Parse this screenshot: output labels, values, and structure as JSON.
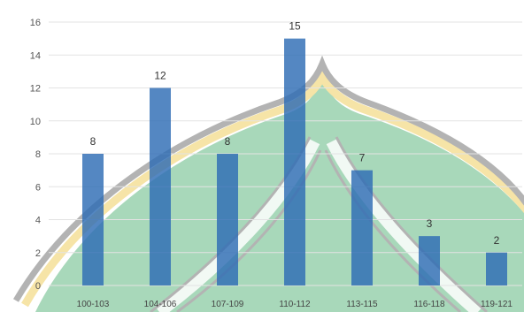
{
  "chart_data": {
    "type": "bar",
    "categories": [
      "100-103",
      "104-106",
      "107-109",
      "110-112",
      "113-115",
      "116-118",
      "119-121"
    ],
    "values": [
      8,
      12,
      8,
      15,
      7,
      3,
      2
    ],
    "data_labels": [
      "8",
      "12",
      "8",
      "15",
      "7",
      "3",
      "2"
    ],
    "y_ticks": [
      "0",
      "2",
      "4",
      "6",
      "8",
      "10",
      "12",
      "14",
      "16"
    ],
    "ylim": [
      0,
      16
    ],
    "grid": true,
    "bar_color": "#2e6db4"
  },
  "overlay": {
    "fill_color": "#8ccba3",
    "band_color": "#f3dc8a",
    "outline_color": "#9a9a9a"
  }
}
